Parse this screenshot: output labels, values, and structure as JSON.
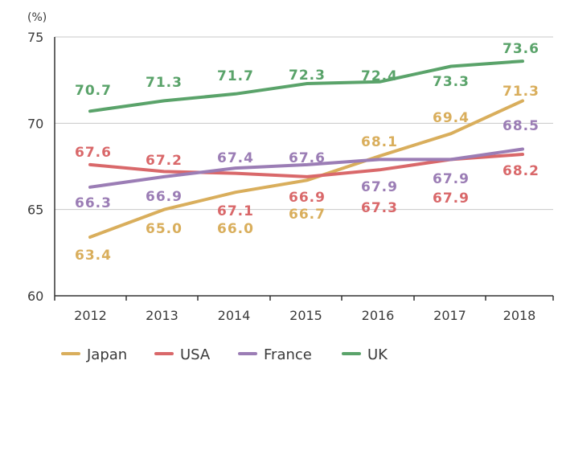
{
  "chart_data": {
    "type": "line",
    "unit": "(%)",
    "x": [
      "2012",
      "2013",
      "2014",
      "2015",
      "2016",
      "2017",
      "2018"
    ],
    "ylim": [
      60,
      75
    ],
    "yticks": [
      "60",
      "65",
      "70",
      "75"
    ],
    "grid": true,
    "legend_position": "bottom",
    "series": [
      {
        "name": "Japan",
        "color": "#d9ae5c",
        "values": [
          63.4,
          65.0,
          66.0,
          66.7,
          68.1,
          69.4,
          71.3
        ],
        "labels": [
          "63.4",
          "65.0",
          "66.0",
          "66.7",
          "68.1",
          "69.4",
          "71.3"
        ]
      },
      {
        "name": "USA",
        "color": "#d9686a",
        "values": [
          67.6,
          67.2,
          67.1,
          66.9,
          67.3,
          67.9,
          68.2
        ],
        "labels": [
          "67.6",
          "67.2",
          "67.1",
          "66.9",
          "67.3",
          "67.9",
          "68.2"
        ]
      },
      {
        "name": "France",
        "color": "#9b7db5",
        "values": [
          66.3,
          66.9,
          67.4,
          67.6,
          67.9,
          67.9,
          68.5
        ],
        "labels": [
          "66.3",
          "66.9",
          "67.4",
          "67.6",
          "67.9",
          "67.9",
          "68.5"
        ]
      },
      {
        "name": "UK",
        "color": "#5aa36a",
        "values": [
          70.7,
          71.3,
          71.7,
          72.3,
          72.4,
          73.3,
          73.6
        ],
        "labels": [
          "70.7",
          "71.3",
          "71.7",
          "72.3",
          "72.4",
          "73.3",
          "73.6"
        ]
      }
    ]
  }
}
